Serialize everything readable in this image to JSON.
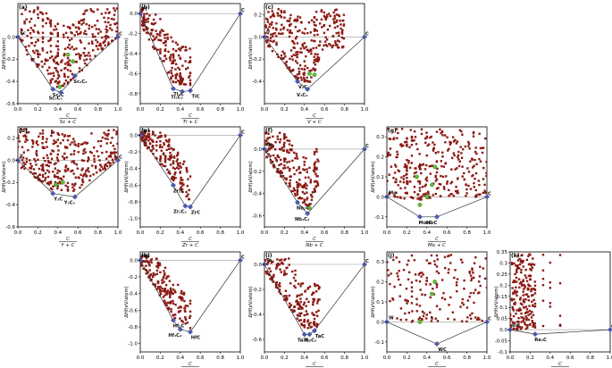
{
  "chart_data": [
    {
      "id": "a",
      "type": "scatter",
      "label": "(a)",
      "xlabel_num": "C",
      "xlabel_den": "Sc + C",
      "ylabel": "ΔHf(eV/atom)",
      "xlim": [
        0,
        1
      ],
      "ylim": [
        -0.6,
        0.3
      ],
      "xticks": [
        0.0,
        0.2,
        0.4,
        0.6,
        0.8,
        1.0
      ],
      "yticks": [
        -0.6,
        -0.4,
        -0.2,
        0.0
      ],
      "ref_line": 0.0,
      "hull": [
        [
          0.0,
          0.0
        ],
        [
          0.35,
          -0.47
        ],
        [
          0.43,
          -0.5
        ],
        [
          0.57,
          -0.35
        ],
        [
          1.0,
          0.0
        ]
      ],
      "hull_labels": [
        {
          "text": "Sc",
          "x": 0.0,
          "y": 0.0
        },
        {
          "text": "Sc₂C",
          "x": 0.35,
          "y": -0.47
        },
        {
          "text": "Sc₂C₃",
          "x": 0.43,
          "y": -0.5
        },
        {
          "text": "Sc₃C₄",
          "x": 0.57,
          "y": -0.35
        },
        {
          "text": "C",
          "x": 1.0,
          "y": 0.0
        }
      ],
      "green": [
        [
          0.42,
          -0.45
        ],
        [
          0.5,
          -0.16
        ],
        [
          0.55,
          -0.22
        ]
      ],
      "cloud": {
        "seed": 11,
        "n": 330,
        "ymin": -0.5,
        "ymax": 0.27,
        "zero_y": 0.0,
        "band": 0.45,
        "lower_edge": [
          [
            0.0,
            -0.05
          ],
          [
            0.35,
            -0.45
          ],
          [
            0.5,
            -0.45
          ],
          [
            0.8,
            -0.15
          ],
          [
            1.0,
            0.0
          ]
        ]
      }
    },
    {
      "id": "b",
      "type": "scatter",
      "label": "(b)",
      "xlabel_num": "C",
      "xlabel_den": "Ti + C",
      "ylabel": "ΔHf(eV/atom)",
      "xlim": [
        0,
        1
      ],
      "ylim": [
        -0.9,
        0.1
      ],
      "xticks": [
        0.0,
        0.2,
        0.4,
        0.6,
        0.8,
        1.0
      ],
      "yticks": [
        -0.8,
        -0.6,
        -0.4,
        -0.2,
        0.0
      ],
      "ref_line": 0.0,
      "hull": [
        [
          0.0,
          0.0
        ],
        [
          0.33,
          -0.75
        ],
        [
          0.42,
          -0.78
        ],
        [
          0.5,
          -0.77
        ],
        [
          1.0,
          0.0
        ]
      ],
      "hull_labels": [
        {
          "text": "Ti",
          "x": 0.0,
          "y": 0.0
        },
        {
          "text": "Ti₂C",
          "x": 0.33,
          "y": -0.75
        },
        {
          "text": "Ti₃C₂",
          "x": 0.42,
          "y": -0.78
        },
        {
          "text": "TiC",
          "x": 0.5,
          "y": -0.77
        },
        {
          "text": "C",
          "x": 1.0,
          "y": 0.0
        }
      ],
      "green": [],
      "cloud": {
        "seed": 23,
        "n": 190,
        "ymin": -0.78,
        "ymax": 0.05,
        "zero_y": 0.0,
        "band": 0.3,
        "xmax": 0.5,
        "lower_edge": [
          [
            0.0,
            -0.1
          ],
          [
            0.33,
            -0.7
          ],
          [
            0.5,
            -0.72
          ]
        ]
      }
    },
    {
      "id": "c",
      "type": "scatter",
      "label": "(c)",
      "xlabel_num": "C",
      "xlabel_den": "V + C",
      "ylabel": "ΔHf(eV/atom)",
      "xlim": [
        0,
        1
      ],
      "ylim": [
        -0.6,
        0.3
      ],
      "xticks": [
        0.0,
        0.2,
        0.4,
        0.6,
        0.8,
        1.0
      ],
      "yticks": [
        -0.4,
        -0.2,
        0.0,
        0.2
      ],
      "ref_line": 0.0,
      "hull": [
        [
          0.0,
          0.0
        ],
        [
          0.33,
          -0.4
        ],
        [
          0.43,
          -0.47
        ],
        [
          1.0,
          0.0
        ]
      ],
      "hull_labels": [
        {
          "text": "V",
          "x": 0.0,
          "y": 0.0
        },
        {
          "text": "V₂C",
          "x": 0.33,
          "y": -0.4
        },
        {
          "text": "V₄C₃",
          "x": 0.43,
          "y": -0.47
        },
        {
          "text": "C",
          "x": 1.0,
          "y": 0.0
        }
      ],
      "green": [
        [
          0.45,
          -0.33
        ],
        [
          0.5,
          -0.34
        ]
      ],
      "cloud": {
        "seed": 37,
        "n": 300,
        "ymin": -0.45,
        "ymax": 0.25,
        "zero_y": 0.0,
        "band": 0.45,
        "xmax": 0.8,
        "lower_edge": [
          [
            0.0,
            -0.05
          ],
          [
            0.33,
            -0.38
          ],
          [
            0.45,
            -0.42
          ],
          [
            0.6,
            -0.1
          ]
        ]
      }
    },
    {
      "id": "d",
      "type": "scatter",
      "label": "(d)",
      "xlabel_num": "C",
      "xlabel_den": "Y + C",
      "ylabel": "ΔHf(eV/atom)",
      "xlim": [
        0,
        1
      ],
      "ylim": [
        -0.6,
        0.3
      ],
      "xticks": [
        0.0,
        0.2,
        0.4,
        0.6,
        0.8,
        1.0
      ],
      "yticks": [
        -0.6,
        -0.4,
        -0.2,
        0.0,
        0.2
      ],
      "ref_line": 0.0,
      "hull": [
        [
          0.0,
          0.0
        ],
        [
          0.35,
          -0.3
        ],
        [
          0.57,
          -0.33
        ],
        [
          1.0,
          0.0
        ]
      ],
      "hull_labels": [
        {
          "text": "Y",
          "x": 0.0,
          "y": 0.0
        },
        {
          "text": "Y₂C",
          "x": 0.35,
          "y": -0.3
        },
        {
          "text": "Y₃C₄",
          "x": 0.57,
          "y": -0.33
        },
        {
          "text": "C",
          "x": 1.0,
          "y": 0.0
        }
      ],
      "green": [
        [
          0.38,
          -0.22
        ],
        [
          0.45,
          -0.2
        ]
      ],
      "cloud": {
        "seed": 41,
        "n": 330,
        "ymin": -0.28,
        "ymax": 0.28,
        "zero_y": 0.0,
        "band": 0.4,
        "lower_edge": [
          [
            0.0,
            -0.05
          ],
          [
            0.35,
            -0.27
          ],
          [
            0.57,
            -0.28
          ],
          [
            1.0,
            0.0
          ]
        ]
      }
    },
    {
      "id": "e",
      "type": "scatter",
      "label": "(e)",
      "xlabel_num": "C",
      "xlabel_den": "Zr + C",
      "ylabel": "ΔHf(eV/atom)",
      "xlim": [
        0,
        1
      ],
      "ylim": [
        -1.1,
        0.1
      ],
      "xticks": [
        0.0,
        0.2,
        0.4,
        0.6,
        0.8,
        1.0
      ],
      "yticks": [
        -1.0,
        -0.8,
        -0.6,
        -0.4,
        -0.2,
        0.0
      ],
      "ref_line": 0.0,
      "hull": [
        [
          0.0,
          0.0
        ],
        [
          0.33,
          -0.6
        ],
        [
          0.45,
          -0.85
        ],
        [
          0.5,
          -0.86
        ],
        [
          1.0,
          0.0
        ]
      ],
      "hull_labels": [
        {
          "text": "Zr",
          "x": 0.0,
          "y": 0.0
        },
        {
          "text": "Zr₂C",
          "x": 0.33,
          "y": -0.6
        },
        {
          "text": "Zr₃C₂",
          "x": 0.45,
          "y": -0.85
        },
        {
          "text": "ZrC",
          "x": 0.5,
          "y": -0.86
        },
        {
          "text": "C",
          "x": 1.0,
          "y": 0.0
        }
      ],
      "green": [],
      "cloud": {
        "seed": 53,
        "n": 180,
        "ymin": -0.85,
        "ymax": 0.05,
        "zero_y": 0.0,
        "band": 0.3,
        "xmax": 0.5,
        "lower_edge": [
          [
            0.0,
            -0.05
          ],
          [
            0.33,
            -0.55
          ],
          [
            0.5,
            -0.8
          ]
        ]
      }
    },
    {
      "id": "f",
      "type": "scatter",
      "label": "(f)",
      "xlabel_num": "C",
      "xlabel_den": "Nb + C",
      "ylabel": "ΔHf(eV/atom)",
      "xlim": [
        0,
        1
      ],
      "ylim": [
        -0.7,
        0.2
      ],
      "xticks": [
        0.0,
        0.2,
        0.4,
        0.6,
        0.8,
        1.0
      ],
      "yticks": [
        -0.6,
        -0.4,
        -0.2,
        0.0
      ],
      "ref_line": 0.0,
      "hull": [
        [
          0.0,
          0.0
        ],
        [
          0.33,
          -0.48
        ],
        [
          0.43,
          -0.58
        ],
        [
          1.0,
          0.0
        ]
      ],
      "hull_labels": [
        {
          "text": "Nb",
          "x": 0.0,
          "y": 0.0
        },
        {
          "text": "Nb₂C",
          "x": 0.33,
          "y": -0.48
        },
        {
          "text": "Nb₄C₃",
          "x": 0.43,
          "y": -0.58
        },
        {
          "text": "C",
          "x": 1.0,
          "y": 0.0
        }
      ],
      "green": [
        [
          0.45,
          -0.53
        ]
      ],
      "cloud": {
        "seed": 67,
        "n": 230,
        "ymin": -0.55,
        "ymax": 0.15,
        "zero_y": 0.0,
        "band": 0.3,
        "xmax": 0.55,
        "lower_edge": [
          [
            0.0,
            -0.05
          ],
          [
            0.33,
            -0.45
          ],
          [
            0.45,
            -0.52
          ],
          [
            0.55,
            -0.3
          ]
        ]
      }
    },
    {
      "id": "g",
      "type": "scatter",
      "label": "(g)",
      "xlabel_num": "C",
      "xlabel_den": "Mo + C",
      "ylabel": "ΔHf(eV/atom)",
      "xlim": [
        0,
        1
      ],
      "ylim": [
        -0.15,
        0.35
      ],
      "xticks": [
        0.0,
        0.2,
        0.4,
        0.6,
        0.8,
        1.0
      ],
      "yticks": [
        -0.1,
        0.0,
        0.1,
        0.2,
        0.3
      ],
      "ref_line": 0.0,
      "hull": [
        [
          0.0,
          0.0
        ],
        [
          0.33,
          -0.1
        ],
        [
          0.5,
          -0.1
        ],
        [
          1.0,
          0.0
        ]
      ],
      "hull_labels": [
        {
          "text": "Mo",
          "x": 0.0,
          "y": 0.0
        },
        {
          "text": "Mo₂C",
          "x": 0.33,
          "y": -0.1
        },
        {
          "text": "MoC",
          "x": 0.5,
          "y": -0.1
        },
        {
          "text": "C",
          "x": 1.0,
          "y": 0.0
        }
      ],
      "green": [
        [
          0.33,
          -0.04
        ],
        [
          0.4,
          0.0
        ],
        [
          0.45,
          0.06
        ],
        [
          0.48,
          0.15
        ],
        [
          0.3,
          0.1
        ]
      ],
      "cloud": {
        "seed": 79,
        "n": 320,
        "ymin": -0.02,
        "ymax": 0.34,
        "zero_y": 0.0,
        "band": 0.34,
        "lower_edge": [
          [
            0.0,
            0.0
          ],
          [
            0.33,
            -0.02
          ],
          [
            0.5,
            0.0
          ],
          [
            1.0,
            0.0
          ]
        ]
      }
    },
    {
      "id": "h",
      "type": "scatter",
      "label": "(h)",
      "xlabel_num": "C",
      "xlabel_den": "Hf + C",
      "ylabel": "ΔHf(eV/atom)",
      "xlim": [
        0,
        1
      ],
      "ylim": [
        -1.1,
        0.1
      ],
      "xticks": [
        0.0,
        0.2,
        0.4,
        0.6,
        0.8,
        1.0
      ],
      "yticks": [
        -1.0,
        -0.8,
        -0.6,
        -0.4,
        -0.2,
        0.0
      ],
      "ref_line": 0.0,
      "hull": [
        [
          0.0,
          0.0
        ],
        [
          0.33,
          -0.72
        ],
        [
          0.4,
          -0.83
        ],
        [
          0.5,
          -0.86
        ],
        [
          1.0,
          0.0
        ]
      ],
      "hull_labels": [
        {
          "text": "Hf",
          "x": 0.0,
          "y": 0.0
        },
        {
          "text": "Hf₂C",
          "x": 0.33,
          "y": -0.72
        },
        {
          "text": "Hf₃C₂",
          "x": 0.4,
          "y": -0.83
        },
        {
          "text": "HfC",
          "x": 0.5,
          "y": -0.86
        },
        {
          "text": "C",
          "x": 1.0,
          "y": 0.0
        }
      ],
      "green": [],
      "cloud": {
        "seed": 89,
        "n": 180,
        "ymin": -0.85,
        "ymax": 0.05,
        "zero_y": 0.0,
        "band": 0.3,
        "xmax": 0.5,
        "lower_edge": [
          [
            0.0,
            -0.05
          ],
          [
            0.33,
            -0.68
          ],
          [
            0.5,
            -0.82
          ]
        ]
      }
    },
    {
      "id": "i",
      "type": "scatter",
      "label": "(i)",
      "xlabel_num": "C",
      "xlabel_den": "Ta + C",
      "ylabel": "ΔHf(eV/atom)",
      "xlim": [
        0,
        1
      ],
      "ylim": [
        -0.7,
        0.1
      ],
      "xticks": [
        0.0,
        0.2,
        0.4,
        0.6,
        0.8,
        1.0
      ],
      "yticks": [
        -0.6,
        -0.4,
        -0.2,
        0.0
      ],
      "ref_line": 0.0,
      "hull": [
        [
          0.0,
          0.0
        ],
        [
          0.4,
          -0.56
        ],
        [
          0.45,
          -0.56
        ],
        [
          0.5,
          -0.53
        ],
        [
          1.0,
          0.0
        ]
      ],
      "hull_labels": [
        {
          "text": "Ta",
          "x": 0.0,
          "y": 0.0
        },
        {
          "text": "Ta₃C₂",
          "x": 0.4,
          "y": -0.56
        },
        {
          "text": "Ta₄C₃",
          "x": 0.45,
          "y": -0.56
        },
        {
          "text": "TaC",
          "x": 0.5,
          "y": -0.53
        },
        {
          "text": "C",
          "x": 1.0,
          "y": 0.0
        }
      ],
      "green": [],
      "cloud": {
        "seed": 97,
        "n": 190,
        "ymin": -0.55,
        "ymax": 0.05,
        "zero_y": 0.0,
        "band": 0.25,
        "xmax": 0.55,
        "lower_edge": [
          [
            0.0,
            -0.05
          ],
          [
            0.4,
            -0.52
          ],
          [
            0.5,
            -0.5
          ]
        ]
      }
    },
    {
      "id": "j",
      "type": "scatter",
      "label": "(j)",
      "xlabel_num": "C",
      "xlabel_den": "W + C",
      "ylabel": "ΔHf(eV/atom)",
      "xlim": [
        0,
        1
      ],
      "ylim": [
        -0.15,
        0.35
      ],
      "xticks": [
        0.0,
        0.2,
        0.4,
        0.6,
        0.8,
        1.0
      ],
      "yticks": [
        -0.1,
        0.0,
        0.1,
        0.2,
        0.3
      ],
      "ref_line": 0.0,
      "hull": [
        [
          0.0,
          0.0
        ],
        [
          0.5,
          -0.11
        ],
        [
          1.0,
          0.0
        ]
      ],
      "hull_labels": [
        {
          "text": "W",
          "x": 0.0,
          "y": 0.0
        },
        {
          "text": "WC",
          "x": 0.5,
          "y": -0.11
        },
        {
          "text": "C",
          "x": 1.0,
          "y": 0.0
        }
      ],
      "green": [
        [
          0.33,
          0.0
        ],
        [
          0.45,
          0.14
        ],
        [
          0.48,
          0.2
        ]
      ],
      "cloud": {
        "seed": 103,
        "n": 170,
        "ymin": 0.0,
        "ymax": 0.34,
        "zero_y": 0.0,
        "band": 0.34,
        "lower_edge": [
          [
            0.0,
            0.0
          ],
          [
            1.0,
            0.0
          ]
        ]
      }
    },
    {
      "id": "k",
      "type": "scatter",
      "label": "(k)",
      "xlabel_num": "C",
      "xlabel_den": "Re + C",
      "ylabel": "ΔHf(eV/atom)",
      "xlim": [
        0,
        1
      ],
      "ylim": [
        -0.1,
        0.35
      ],
      "xticks": [
        0.0,
        0.2,
        0.4,
        0.6,
        0.8,
        1.0
      ],
      "yticks": [
        -0.1,
        -0.05,
        0.0,
        0.05,
        0.1,
        0.15,
        0.2,
        0.25,
        0.3,
        0.35
      ],
      "ref_line": 0.0,
      "hull": [
        [
          0.0,
          0.0
        ],
        [
          0.25,
          -0.02
        ],
        [
          1.0,
          0.0
        ]
      ],
      "hull_labels": [
        {
          "text": "Re",
          "x": 0.0,
          "y": 0.0
        },
        {
          "text": "Re₃C",
          "x": 0.25,
          "y": -0.02
        },
        {
          "text": "C",
          "x": 1.0,
          "y": 0.0
        }
      ],
      "green": [],
      "cloud": {
        "seed": 113,
        "n": 210,
        "ymin": 0.0,
        "ymax": 0.34,
        "zero_y": 0.0,
        "band": 0.34,
        "xmax": 0.25,
        "lower_edge": [
          [
            0.0,
            0.0
          ],
          [
            0.25,
            0.0
          ]
        ]
      }
    }
  ],
  "colors": {
    "points": "#8b1a14",
    "hull_marker": "#4d5aa8",
    "green": "#5fbf3a",
    "hull_line": "#333333",
    "ref_line": "#999999"
  }
}
